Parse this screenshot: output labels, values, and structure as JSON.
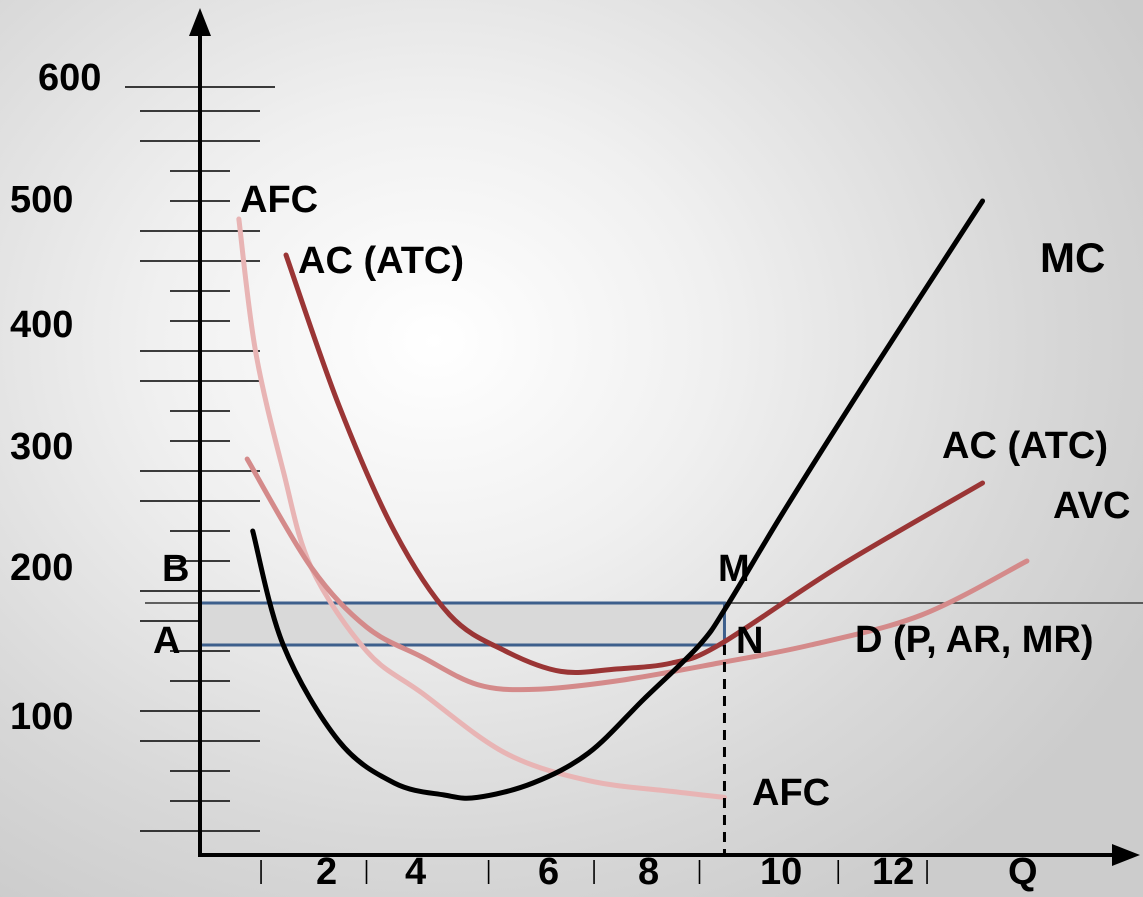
{
  "chart_data": {
    "type": "line",
    "title": "",
    "xlabel": "Q",
    "ylabel": "",
    "xlim": [
      0,
      15
    ],
    "ylim": [
      0,
      640
    ],
    "x_ticks": [
      2,
      4,
      6,
      8,
      10,
      12
    ],
    "y_ticks": [
      100,
      200,
      300,
      400,
      500,
      600
    ],
    "grid": false,
    "colors": {
      "MC": "#000000",
      "AC": "#9a3535",
      "AVC": "#d48a8a",
      "AFC": "#e8b4b4",
      "D": "#333333",
      "rect_fill": "#d9d9d9",
      "rect_stroke": "#3d5f8c"
    },
    "series": [
      {
        "name": "MC",
        "points": [
          [
            0.95,
            270
          ],
          [
            1.5,
            175
          ],
          [
            2.5,
            95
          ],
          [
            3.5,
            60
          ],
          [
            4.4,
            50
          ],
          [
            5.0,
            48
          ],
          [
            6.0,
            60
          ],
          [
            7.0,
            85
          ],
          [
            8.0,
            130
          ],
          [
            9.0,
            175
          ],
          [
            9.5,
            208
          ],
          [
            10.5,
            285
          ],
          [
            12.0,
            395
          ],
          [
            14.1,
            545
          ]
        ]
      },
      {
        "name": "AC (ATC)",
        "points": [
          [
            1.55,
            500
          ],
          [
            2.5,
            375
          ],
          [
            3.5,
            270
          ],
          [
            4.5,
            200
          ],
          [
            5.5,
            170
          ],
          [
            6.5,
            153
          ],
          [
            7.5,
            155
          ],
          [
            8.5,
            160
          ],
          [
            9.35,
            175
          ],
          [
            11.5,
            240
          ],
          [
            14.1,
            310
          ]
        ]
      },
      {
        "name": "AVC",
        "points": [
          [
            0.85,
            330
          ],
          [
            2.0,
            240
          ],
          [
            3.0,
            190
          ],
          [
            4.0,
            165
          ],
          [
            5.0,
            142
          ],
          [
            6.0,
            138
          ],
          [
            7.5,
            145
          ],
          [
            9.35,
            160
          ],
          [
            11.0,
            175
          ],
          [
            13.0,
            200
          ],
          [
            14.9,
            245
          ]
        ]
      },
      {
        "name": "AFC",
        "points": [
          [
            0.7,
            530
          ],
          [
            1.0,
            420
          ],
          [
            1.5,
            320
          ],
          [
            2.0,
            240
          ],
          [
            3.0,
            170
          ],
          [
            4.0,
            135
          ],
          [
            5.5,
            85
          ],
          [
            7.0,
            62
          ],
          [
            8.5,
            53
          ],
          [
            9.45,
            48
          ]
        ]
      },
      {
        "name": "D (P, AR, MR)",
        "points": [
          [
            0,
            210
          ],
          [
            15,
            210
          ]
        ]
      }
    ],
    "rectangle": {
      "x": [
        0,
        9.45
      ],
      "y": [
        175,
        210
      ]
    },
    "dashed_line": {
      "x": 9.45,
      "y": [
        0,
        175
      ]
    },
    "labels": {
      "AFC_top": "AFC",
      "AC_top": "AC (ATC)",
      "MC": "MC",
      "AC_right": "AC (ATC)",
      "AVC": "AVC",
      "D": "D (P, AR, MR)",
      "AFC_bottom": "AFC",
      "B": "B",
      "A": "A",
      "M": "M",
      "N": "N",
      "Q": "Q"
    }
  }
}
